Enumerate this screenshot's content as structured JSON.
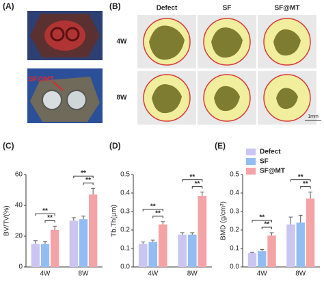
{
  "panel_labels": [
    "(A)",
    "(B)",
    "(C)",
    "(D)",
    "(E)"
  ],
  "photo_label": "SF@MT",
  "micro_ct": {
    "columns": [
      "Defect",
      "SF",
      "SF@MT"
    ],
    "rows": [
      "4W",
      "8W"
    ],
    "scale": "1mm"
  },
  "chart_data": [
    {
      "type": "bar",
      "y_label": "BV/TV(%)",
      "categories": [
        "4W",
        "8W"
      ],
      "ylim": [
        0,
        60
      ],
      "yticks": [
        0,
        20,
        40,
        60
      ],
      "series": [
        {
          "color": "#cbc5f2",
          "values": [
            15,
            30
          ],
          "errors": [
            2,
            2
          ]
        },
        {
          "color": "#93bdf2",
          "values": [
            15,
            31
          ],
          "errors": [
            1.5,
            2
          ]
        },
        {
          "color": "#f4a3a7",
          "values": [
            24,
            47
          ],
          "errors": [
            2.5,
            4
          ]
        }
      ],
      "annotations": [
        "**",
        "**",
        "**",
        "**"
      ]
    },
    {
      "type": "bar",
      "y_label": "Tb.Th(μm)",
      "categories": [
        "4W",
        "8W"
      ],
      "ylim": [
        0,
        0.5
      ],
      "yticks": [
        {
          "value": 0,
          "label": "0.0"
        },
        0.1,
        0.2,
        0.3,
        0.4,
        0.5
      ],
      "series": [
        {
          "color": "#cbc5f2",
          "values": [
            0.125,
            0.175
          ],
          "errors": [
            0.01,
            0.01
          ]
        },
        {
          "color": "#93bdf2",
          "values": [
            0.135,
            0.175
          ],
          "errors": [
            0.01,
            0.01
          ]
        },
        {
          "color": "#f4a3a7",
          "values": [
            0.23,
            0.385
          ],
          "errors": [
            0.015,
            0.02
          ]
        }
      ],
      "annotations": [
        "**",
        "**",
        "**",
        "**"
      ]
    },
    {
      "type": "bar",
      "y_label": "BMD (g/cm³)",
      "categories": [
        "4W",
        "8W"
      ],
      "ylim": [
        0,
        0.5
      ],
      "yticks": [
        {
          "value": 0,
          "label": "0.0"
        },
        0.1,
        0.2,
        0.3,
        0.4,
        0.5
      ],
      "legend": true,
      "series": [
        {
          "name": "Defect",
          "color": "#cbc5f2",
          "values": [
            0.075,
            0.23
          ],
          "errors": [
            0.005,
            0.04
          ]
        },
        {
          "name": "SF",
          "color": "#93bdf2",
          "values": [
            0.085,
            0.24
          ],
          "errors": [
            0.01,
            0.04
          ]
        },
        {
          "name": "SF@MT",
          "color": "#f4a3a7",
          "values": [
            0.17,
            0.37
          ],
          "errors": [
            0.015,
            0.035
          ]
        }
      ],
      "annotations": [
        "**",
        "**",
        "**",
        "**"
      ]
    }
  ]
}
